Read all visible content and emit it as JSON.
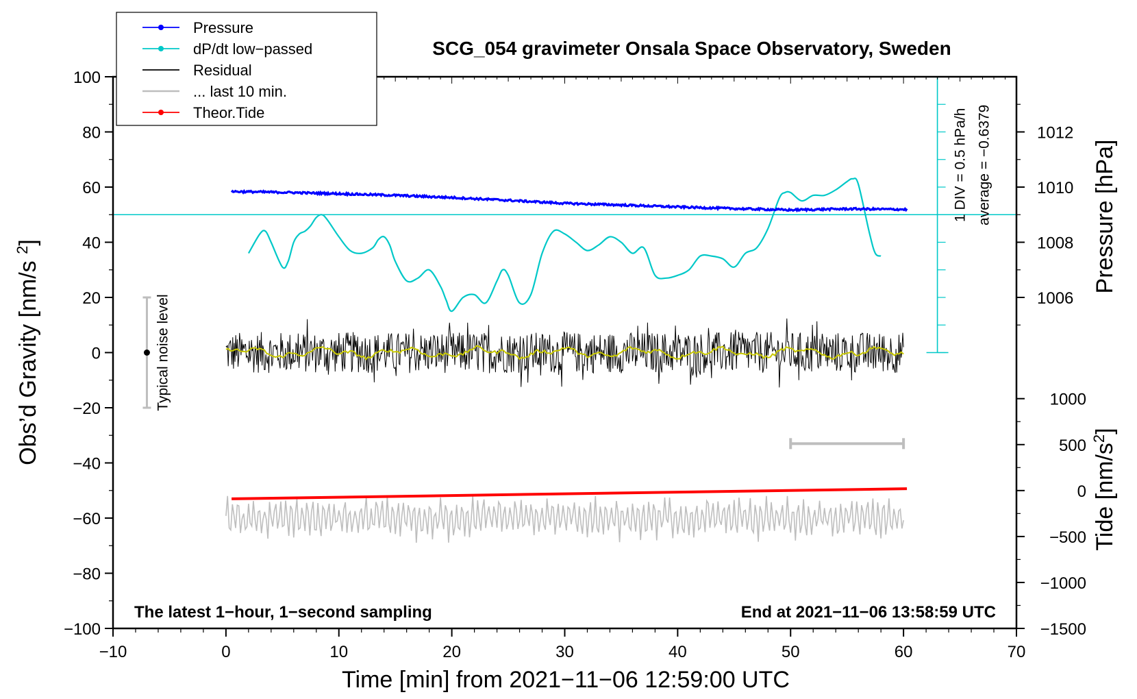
{
  "chart_data": {
    "type": "line",
    "title": "SCG_054 gravimeter Onsala Space Observatory, Sweden",
    "xlabel": "Time [min] from 2021−11−06 12:59:00 UTC",
    "ylabel_left": "Obs’d Gravity [nm/s²]",
    "ylabel_right_top": "Pressure [hPa]",
    "ylabel_right_bottom": "Tide [nm/s²]",
    "xlim": [
      -10,
      70
    ],
    "ylim": [
      -100,
      100
    ],
    "x_ticks": [
      {
        "value": -10,
        "label": "−10"
      },
      {
        "value": 0,
        "label": "0"
      },
      {
        "value": 10,
        "label": "10"
      },
      {
        "value": 20,
        "label": "20"
      },
      {
        "value": 30,
        "label": "30"
      },
      {
        "value": 40,
        "label": "40"
      },
      {
        "value": 50,
        "label": "50"
      },
      {
        "value": 60,
        "label": "60"
      },
      {
        "value": 70,
        "label": "70"
      }
    ],
    "y_ticks": [
      {
        "value": 100,
        "label": "100"
      },
      {
        "value": 80,
        "label": "80"
      },
      {
        "value": 60,
        "label": "60"
      },
      {
        "value": 40,
        "label": "40"
      },
      {
        "value": 20,
        "label": "20"
      },
      {
        "value": 0,
        "label": "0"
      },
      {
        "value": -20,
        "label": "−20"
      },
      {
        "value": -40,
        "label": "−40"
      },
      {
        "value": -60,
        "label": "−60"
      },
      {
        "value": -80,
        "label": "−80"
      },
      {
        "value": -100,
        "label": "−100"
      }
    ],
    "pressure_axis": {
      "ticks": [
        {
          "value": 1006,
          "label": "1006"
        },
        {
          "value": 1008,
          "label": "1008"
        },
        {
          "value": 1010,
          "label": "1010"
        },
        {
          "value": 1012,
          "label": "1012"
        }
      ],
      "map_hpa_to_gravity": {
        "hpa": [
          1006,
          1012
        ],
        "gravity": [
          20,
          80
        ]
      }
    },
    "tide_axis": {
      "ticks": [
        {
          "value": 1000,
          "label": "1000"
        },
        {
          "value": 500,
          "label": "500"
        },
        {
          "value": 0,
          "label": "0"
        },
        {
          "value": -500,
          "label": "−500"
        },
        {
          "value": -1000,
          "label": "−1000"
        },
        {
          "value": -1500,
          "label": "−1500"
        }
      ],
      "map_tide_to_gravity": {
        "tide": [
          -1500,
          1000
        ],
        "gravity": [
          -100,
          -16.7
        ]
      }
    },
    "legend": {
      "location": "upper-left",
      "entries": [
        {
          "label": "Pressure",
          "color": "#0000ff",
          "marker": true
        },
        {
          "label": "dP/dt low−passed",
          "color": "#00c8c8",
          "marker": true
        },
        {
          "label": "Residual",
          "color": "#000000",
          "marker": false
        },
        {
          "label": "... last 10 min.",
          "color": "#bebebe",
          "marker": false
        },
        {
          "label": "Theor.Tide",
          "color": "#ff0000",
          "marker": true
        }
      ]
    },
    "series": [
      {
        "name": "Pressure",
        "color": "#0000ff",
        "unit": "gravity-axis",
        "x": [
          0.5,
          5,
          10,
          15,
          20,
          25,
          30,
          35,
          40,
          45,
          50,
          55,
          60.3
        ],
        "y": [
          58.4,
          58.1,
          57.6,
          57.0,
          56.2,
          55.2,
          54.1,
          53.5,
          52.8,
          52.2,
          51.7,
          52.1,
          51.9
        ]
      },
      {
        "name": "dP/dt low−passed",
        "color": "#00c8c8",
        "unit": "gravity-axis",
        "baseline": 50,
        "x": [
          2,
          3,
          3.5,
          4,
          5,
          5.5,
          6,
          6.5,
          7,
          7.5,
          8,
          8.5,
          9,
          10,
          11,
          12,
          13,
          13.5,
          14,
          14.5,
          15,
          16,
          17,
          18,
          19,
          19.5,
          20,
          21,
          22,
          23,
          24,
          24.5,
          25,
          26,
          27,
          28,
          29,
          30,
          31,
          32,
          33,
          34,
          35,
          36,
          37,
          38,
          39,
          40,
          41,
          42,
          43,
          44,
          45,
          46,
          47,
          48,
          49,
          49.5,
          50,
          51,
          52,
          53,
          54,
          55,
          55.5,
          56,
          57,
          57.5,
          58
        ],
        "y": [
          36,
          43,
          44,
          40,
          31,
          33,
          40,
          43,
          44,
          46,
          49,
          50,
          48,
          42,
          37,
          36,
          38,
          41,
          42,
          39,
          33,
          26,
          27,
          30,
          24,
          19,
          15,
          20,
          21,
          18,
          26,
          30,
          28,
          18,
          21,
          36,
          44,
          43,
          40,
          37,
          39,
          42,
          40,
          36,
          38,
          28,
          27,
          28,
          30,
          35,
          35,
          34,
          31,
          36,
          38,
          45,
          56,
          58,
          58,
          55,
          57,
          57,
          59,
          62,
          63,
          61,
          43,
          36,
          35
        ]
      },
      {
        "name": "Residual",
        "color": "#000000",
        "unit": "nm/s²",
        "x_range": [
          0,
          60
        ],
        "amplitude": 7.5,
        "extreme_range": [
          -15,
          13
        ]
      },
      {
        "name": "Residual smoothed",
        "color": "#c8c800",
        "unit": "nm/s²",
        "x_range": [
          0,
          60
        ],
        "value_approx": 0
      },
      {
        "name": "... last 10 min.",
        "color": "#bebebe",
        "unit": "gravity-axis",
        "x_range": [
          0,
          60
        ],
        "center": -60,
        "extreme_range": [
          -74,
          -52
        ]
      },
      {
        "name": "Theor.Tide",
        "color": "#ff0000",
        "unit": "nm/s² (tide axis)",
        "x": [
          0.5,
          60.3
        ],
        "y": [
          -90,
          20
        ]
      }
    ],
    "noise_marker": {
      "x": -7,
      "center": 0,
      "low": -20,
      "high": 20,
      "label": "Typical noise level"
    },
    "scale_bar": {
      "x_start": 50,
      "x_end": 60,
      "y": -33
    },
    "dpdt_scale": {
      "x": 63,
      "y_start": 0,
      "y_end": 100,
      "label_div": "1 DIV = 0.5 hPa/h",
      "label_avg": "average = −0.6379"
    },
    "footer_left": "The latest 1−hour, 1−second sampling",
    "footer_right": "End at 2021−11−06 13:58:59 UTC"
  }
}
